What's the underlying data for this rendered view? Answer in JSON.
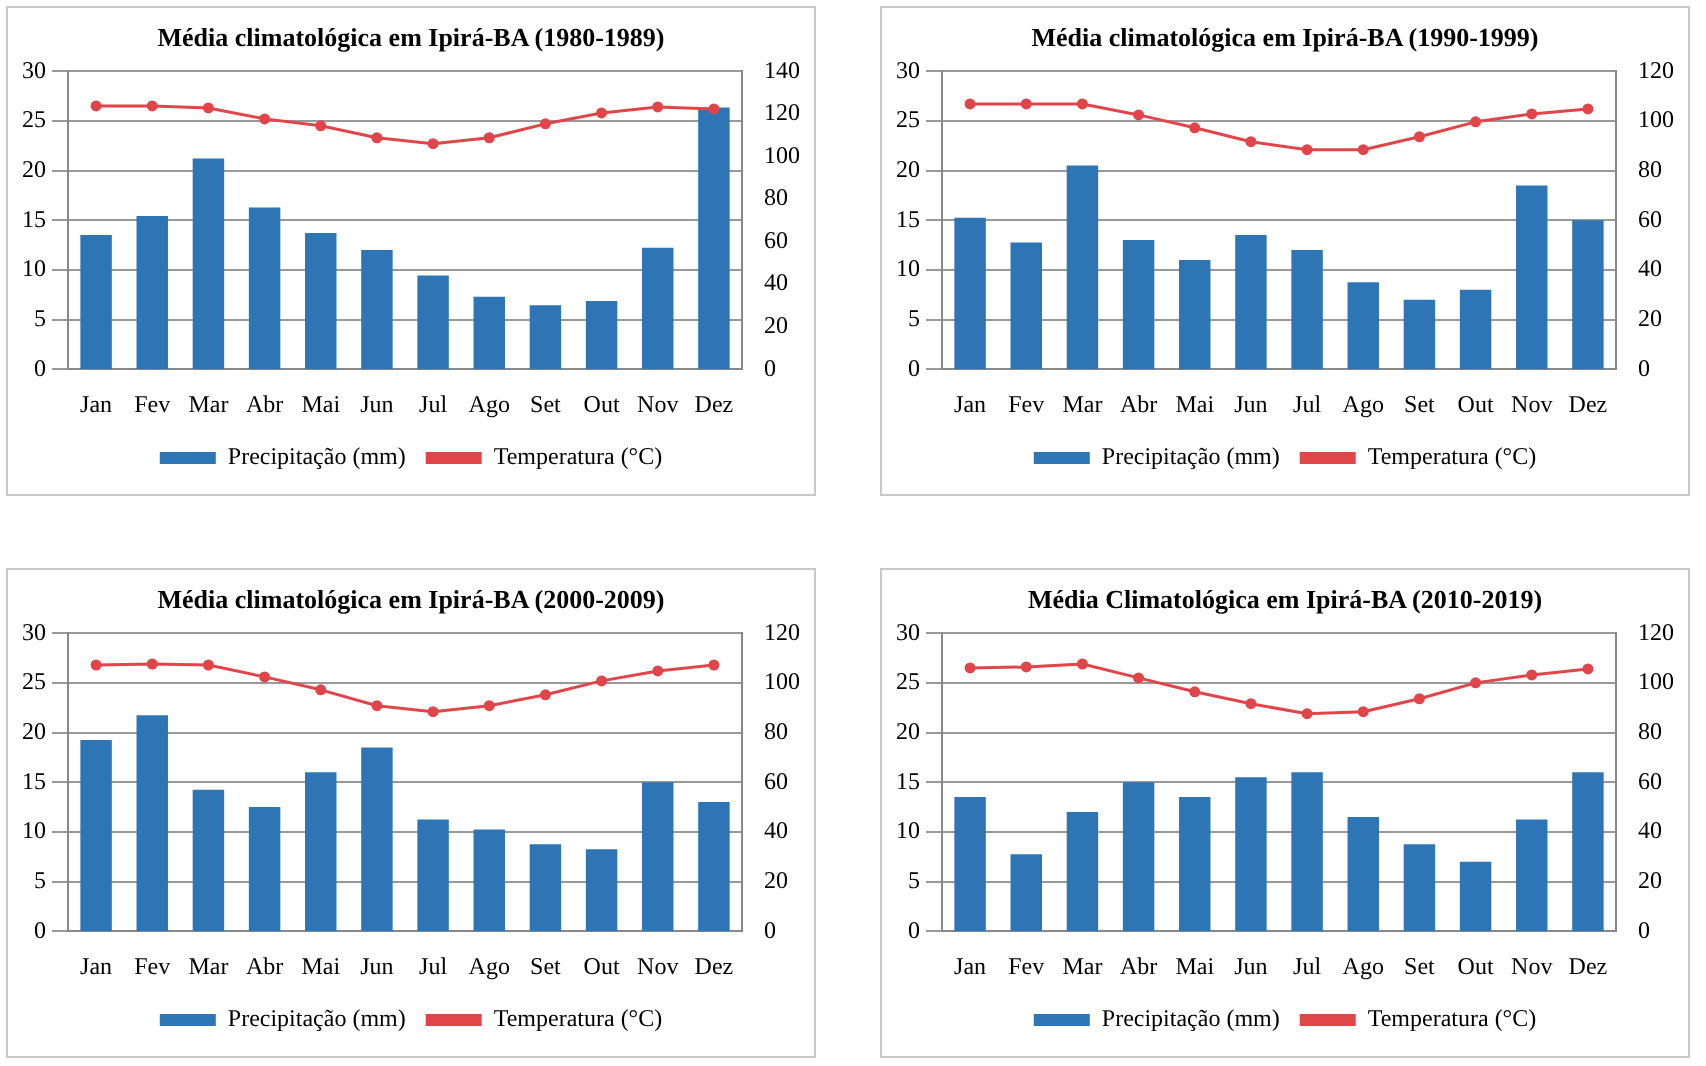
{
  "chart_data": [
    {
      "type": "bar",
      "title": "Média climatológica em Ipirá-BA (1980-1989)",
      "categories": [
        "Jan",
        "Fev",
        "Mar",
        "Abr",
        "Mai",
        "Jun",
        "Jul",
        "Ago",
        "Set",
        "Out",
        "Nov",
        "Dez"
      ],
      "series": [
        {
          "name": "Precipitação (mm)",
          "axis": "y2",
          "color": "#2e75b6",
          "values": [
            63,
            72,
            99,
            76,
            64,
            56,
            44,
            34,
            30,
            32,
            57,
            123
          ]
        },
        {
          "name": "Temperatura (°C)",
          "type": "line",
          "color": "#e0454a",
          "values": [
            26.5,
            26.5,
            26.3,
            25.2,
            24.5,
            23.3,
            22.7,
            23.3,
            24.7,
            25.8,
            26.4,
            26.2
          ]
        }
      ],
      "ylim": [
        0,
        30
      ],
      "yticks": [
        0,
        5,
        10,
        15,
        20,
        25,
        30
      ],
      "y2lim": [
        0,
        140
      ],
      "y2ticks": [
        0,
        20,
        40,
        60,
        80,
        100,
        120,
        140
      ],
      "grid": "y",
      "legend": "bottom",
      "marker": "circle"
    },
    {
      "type": "bar",
      "title": "Média climatológica em Ipirá-BA (1990-1999)",
      "categories": [
        "Jan",
        "Fev",
        "Mar",
        "Abr",
        "Mai",
        "Jun",
        "Jul",
        "Ago",
        "Set",
        "Out",
        "Nov",
        "Dez"
      ],
      "series": [
        {
          "name": "Precipitação (mm)",
          "axis": "y2",
          "color": "#2e75b6",
          "values": [
            61,
            51,
            82,
            52,
            44,
            54,
            48,
            35,
            28,
            32,
            74,
            60
          ]
        },
        {
          "name": "Temperatura (°C)",
          "type": "line",
          "color": "#e0454a",
          "values": [
            26.7,
            26.7,
            26.7,
            25.6,
            24.3,
            22.9,
            22.1,
            22.1,
            23.4,
            24.9,
            25.7,
            26.2
          ]
        }
      ],
      "ylim": [
        0,
        30
      ],
      "yticks": [
        0,
        5,
        10,
        15,
        20,
        25,
        30
      ],
      "y2lim": [
        0,
        120
      ],
      "y2ticks": [
        0,
        20,
        40,
        60,
        80,
        100,
        120
      ],
      "grid": "y",
      "legend": "bottom",
      "marker": "circle"
    },
    {
      "type": "bar",
      "title": "Média climatológica em Ipirá-BA (2000-2009)",
      "categories": [
        "Jan",
        "Fev",
        "Mar",
        "Abr",
        "Mai",
        "Jun",
        "Jul",
        "Ago",
        "Set",
        "Out",
        "Nov",
        "Dez"
      ],
      "series": [
        {
          "name": "Precipitação (mm)",
          "axis": "y2",
          "color": "#2e75b6",
          "values": [
            77,
            87,
            57,
            50,
            64,
            74,
            45,
            41,
            35,
            33,
            60,
            52
          ]
        },
        {
          "name": "Temperatura (°C)",
          "type": "line",
          "color": "#e0454a",
          "values": [
            26.8,
            26.9,
            26.8,
            25.6,
            24.3,
            22.7,
            22.1,
            22.7,
            23.8,
            25.2,
            26.2,
            26.8
          ]
        }
      ],
      "ylim": [
        0,
        30
      ],
      "yticks": [
        0,
        5,
        10,
        15,
        20,
        25,
        30
      ],
      "y2lim": [
        0,
        120
      ],
      "y2ticks": [
        0,
        20,
        40,
        60,
        80,
        100,
        120
      ],
      "grid": "y",
      "legend": "bottom",
      "marker": "circle"
    },
    {
      "type": "bar",
      "title": "Média Climatológica em Ipirá-BA (2010-2019)",
      "categories": [
        "Jan",
        "Fev",
        "Mar",
        "Abr",
        "Mai",
        "Jun",
        "Jul",
        "Ago",
        "Set",
        "Out",
        "Nov",
        "Dez"
      ],
      "series": [
        {
          "name": "Precipitação (mm)",
          "axis": "y2",
          "color": "#2e75b6",
          "values": [
            54,
            31,
            48,
            60,
            54,
            62,
            64,
            46,
            35,
            28,
            45,
            64
          ]
        },
        {
          "name": "Temperatura (°C)",
          "type": "line",
          "color": "#e0454a",
          "values": [
            26.5,
            26.6,
            26.9,
            25.5,
            24.1,
            22.9,
            21.9,
            22.1,
            23.4,
            25,
            25.8,
            26.4
          ]
        }
      ],
      "ylim": [
        0,
        30
      ],
      "yticks": [
        0,
        5,
        10,
        15,
        20,
        25,
        30
      ],
      "y2lim": [
        0,
        120
      ],
      "y2ticks": [
        0,
        20,
        40,
        60,
        80,
        100,
        120
      ],
      "grid": "y",
      "legend": "bottom",
      "marker": "circle"
    }
  ]
}
